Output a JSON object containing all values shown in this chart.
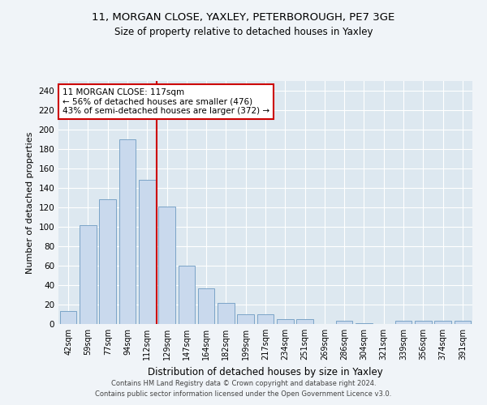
{
  "title1": "11, MORGAN CLOSE, YAXLEY, PETERBOROUGH, PE7 3GE",
  "title2": "Size of property relative to detached houses in Yaxley",
  "xlabel": "Distribution of detached houses by size in Yaxley",
  "ylabel": "Number of detached properties",
  "categories": [
    "42sqm",
    "59sqm",
    "77sqm",
    "94sqm",
    "112sqm",
    "129sqm",
    "147sqm",
    "164sqm",
    "182sqm",
    "199sqm",
    "217sqm",
    "234sqm",
    "251sqm",
    "269sqm",
    "286sqm",
    "304sqm",
    "321sqm",
    "339sqm",
    "356sqm",
    "374sqm",
    "391sqm"
  ],
  "values": [
    13,
    102,
    128,
    190,
    148,
    121,
    60,
    37,
    22,
    10,
    10,
    5,
    5,
    0,
    3,
    1,
    0,
    3,
    3,
    3,
    3
  ],
  "bar_color": "#c9d9ed",
  "bar_edge_color": "#7ba4c7",
  "vline_color": "#cc0000",
  "annotation_text": "11 MORGAN CLOSE: 117sqm\n← 56% of detached houses are smaller (476)\n43% of semi-detached houses are larger (372) →",
  "annotation_box_color": "#ffffff",
  "annotation_box_edge": "#cc0000",
  "plot_bg_color": "#dde8f0",
  "fig_bg_color": "#f0f4f8",
  "grid_color": "#ffffff",
  "ylim": [
    0,
    250
  ],
  "yticks": [
    0,
    20,
    40,
    60,
    80,
    100,
    120,
    140,
    160,
    180,
    200,
    220,
    240
  ],
  "vline_pos": 4.5,
  "footer1": "Contains HM Land Registry data © Crown copyright and database right 2024.",
  "footer2": "Contains public sector information licensed under the Open Government Licence v3.0."
}
